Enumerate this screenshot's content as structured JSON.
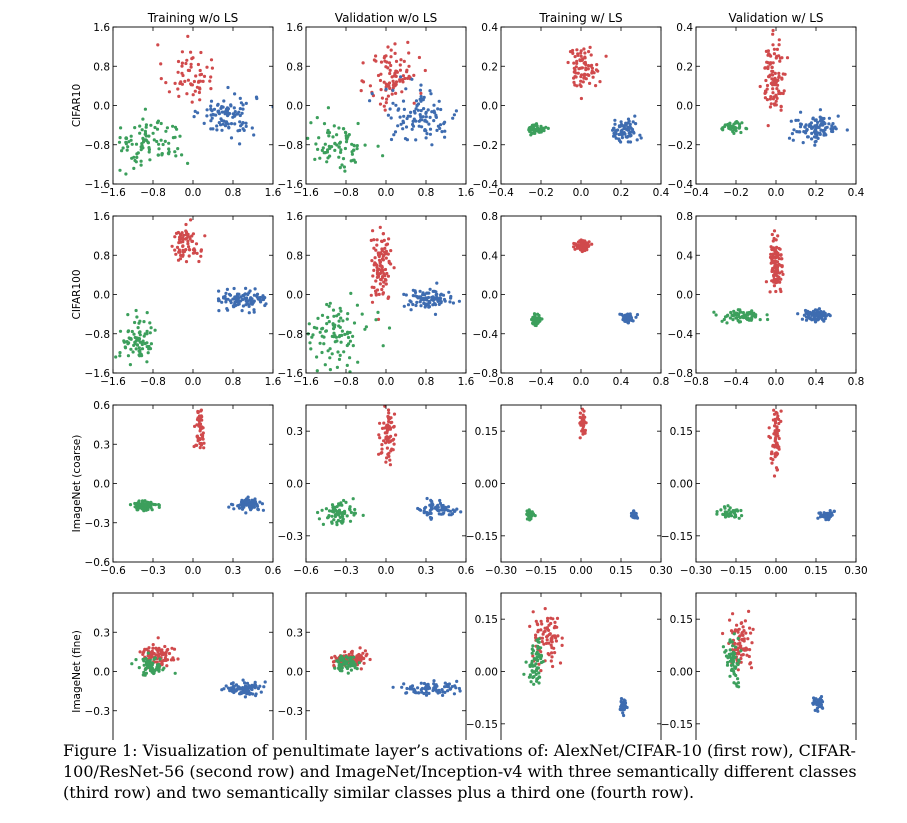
{
  "caption": "Figure 1: Visualization of penultimate layer’s activations of: AlexNet/CIFAR-10 (first row), CIFAR-100/ResNet-56 (second row) and ImageNet/Inception-v4 with three semantically different classes (third row) and two semantically similar classes plus a third one (fourth row).",
  "colors": {
    "red": "#d04a4c",
    "green": "#3c9f5c",
    "blue": "#3e6cb0"
  },
  "chart_data": {
    "type": "scatter",
    "column_titles": [
      "Training w/o LS",
      "Validation w/o LS",
      "Training w/ LS",
      "Validation w/ LS"
    ],
    "row_labels": [
      "CIFAR10",
      "CIFAR100",
      "ImageNet (coarse)",
      "ImageNet (fine)"
    ],
    "series_names": [
      "red",
      "green",
      "blue"
    ],
    "panels": [
      {
        "row": 0,
        "col": 0,
        "xlim": [
          -1.6,
          1.6
        ],
        "ylim": [
          -1.6,
          1.6
        ],
        "xticks": [
          "-1.6",
          "-0.8",
          "0.0",
          "0.8",
          "1.6"
        ],
        "yticks": [
          "-1.6",
          "-0.8",
          "0.0",
          "0.8",
          "1.6"
        ],
        "clusters": [
          {
            "series": "red",
            "n": 60,
            "cx": -0.1,
            "cy": 0.65,
            "sx": 0.25,
            "sy": 0.3
          },
          {
            "series": "blue",
            "n": 100,
            "cx": 0.7,
            "cy": -0.2,
            "sx": 0.28,
            "sy": 0.22
          },
          {
            "series": "green",
            "n": 100,
            "cx": -0.9,
            "cy": -0.75,
            "sx": 0.38,
            "sy": 0.25
          }
        ]
      },
      {
        "row": 0,
        "col": 1,
        "xlim": [
          -1.6,
          1.6
        ],
        "ylim": [
          -1.6,
          1.6
        ],
        "xticks": [
          "-1.6",
          "-0.8",
          "0.0",
          "0.8",
          "1.6"
        ],
        "yticks": [
          "-1.6",
          "-0.8",
          "0.0",
          "0.8",
          "1.6"
        ],
        "clusters": [
          {
            "series": "red",
            "n": 90,
            "cx": 0.15,
            "cy": 0.6,
            "sx": 0.25,
            "sy": 0.35
          },
          {
            "series": "blue",
            "n": 110,
            "cx": 0.7,
            "cy": -0.2,
            "sx": 0.38,
            "sy": 0.28
          },
          {
            "series": "green",
            "n": 80,
            "cx": -0.95,
            "cy": -0.8,
            "sx": 0.3,
            "sy": 0.25
          }
        ]
      },
      {
        "row": 0,
        "col": 2,
        "xlim": [
          -0.4,
          0.4
        ],
        "ylim": [
          -0.4,
          0.4
        ],
        "xticks": [
          "-0.4",
          "-0.2",
          "0.0",
          "0.2",
          "0.4"
        ],
        "yticks": [
          "-0.4",
          "-0.2",
          "0.0",
          "0.2",
          "0.4"
        ],
        "clusters": [
          {
            "series": "red",
            "n": 80,
            "cx": 0.01,
            "cy": 0.2,
            "sx": 0.04,
            "sy": 0.05
          },
          {
            "series": "blue",
            "n": 70,
            "cx": 0.22,
            "cy": -0.13,
            "sx": 0.035,
            "sy": 0.03
          },
          {
            "series": "green",
            "n": 60,
            "cx": -0.22,
            "cy": -0.12,
            "sx": 0.02,
            "sy": 0.012
          }
        ]
      },
      {
        "row": 0,
        "col": 3,
        "xlim": [
          -0.4,
          0.4
        ],
        "ylim": [
          -0.4,
          0.4
        ],
        "xticks": [
          "-0.4",
          "-0.2",
          "0.0",
          "0.2",
          "0.4"
        ],
        "yticks": [
          "-0.4",
          "-0.2",
          "0.0",
          "0.2",
          "0.4"
        ],
        "clusters": [
          {
            "series": "red",
            "n": 100,
            "cx": -0.01,
            "cy": 0.15,
            "sx": 0.03,
            "sy": 0.09
          },
          {
            "series": "blue",
            "n": 100,
            "cx": 0.2,
            "cy": -0.12,
            "sx": 0.06,
            "sy": 0.035
          },
          {
            "series": "green",
            "n": 40,
            "cx": -0.22,
            "cy": -0.11,
            "sx": 0.025,
            "sy": 0.012
          }
        ]
      },
      {
        "row": 1,
        "col": 0,
        "xlim": [
          -1.6,
          1.6
        ],
        "ylim": [
          -1.6,
          1.6
        ],
        "xticks": [
          "-1.6",
          "-0.8",
          "0.0",
          "0.8",
          "1.6"
        ],
        "yticks": [
          "-1.6",
          "-0.8",
          "0.0",
          "0.8",
          "1.6"
        ],
        "clusters": [
          {
            "series": "red",
            "n": 70,
            "cx": -0.15,
            "cy": 1.0,
            "sx": 0.15,
            "sy": 0.22
          },
          {
            "series": "blue",
            "n": 100,
            "cx": 1.0,
            "cy": -0.1,
            "sx": 0.22,
            "sy": 0.1
          },
          {
            "series": "green",
            "n": 80,
            "cx": -1.1,
            "cy": -0.9,
            "sx": 0.18,
            "sy": 0.22
          }
        ]
      },
      {
        "row": 1,
        "col": 1,
        "xlim": [
          -1.6,
          1.6
        ],
        "ylim": [
          -1.6,
          1.6
        ],
        "xticks": [
          "-1.6",
          "-0.8",
          "0.0",
          "0.8",
          "1.6"
        ],
        "yticks": [
          "-1.6",
          "-0.8",
          "0.0",
          "0.8",
          "1.6"
        ],
        "clusters": [
          {
            "series": "red",
            "n": 110,
            "cx": -0.1,
            "cy": 0.55,
            "sx": 0.1,
            "sy": 0.35
          },
          {
            "series": "blue",
            "n": 90,
            "cx": 0.85,
            "cy": -0.1,
            "sx": 0.25,
            "sy": 0.1
          },
          {
            "series": "green",
            "n": 100,
            "cx": -1.0,
            "cy": -0.8,
            "sx": 0.35,
            "sy": 0.3
          }
        ]
      },
      {
        "row": 1,
        "col": 2,
        "xlim": [
          -0.8,
          0.8
        ],
        "ylim": [
          -0.8,
          0.8
        ],
        "xticks": [
          "-0.8",
          "-0.4",
          "0.0",
          "0.4",
          "0.8"
        ],
        "yticks": [
          "-0.8",
          "-0.4",
          "0.0",
          "0.4",
          "0.8"
        ],
        "clusters": [
          {
            "series": "red",
            "n": 70,
            "cx": 0.02,
            "cy": 0.5,
            "sx": 0.035,
            "sy": 0.03
          },
          {
            "series": "blue",
            "n": 60,
            "cx": 0.47,
            "cy": -0.24,
            "sx": 0.03,
            "sy": 0.025
          },
          {
            "series": "green",
            "n": 70,
            "cx": -0.45,
            "cy": -0.26,
            "sx": 0.025,
            "sy": 0.025
          }
        ]
      },
      {
        "row": 1,
        "col": 3,
        "xlim": [
          -0.8,
          0.8
        ],
        "ylim": [
          -0.8,
          0.8
        ],
        "xticks": [
          "-0.8",
          "-0.4",
          "0.0",
          "0.4",
          "0.8"
        ],
        "yticks": [
          "-0.8",
          "-0.4",
          "0.0",
          "0.4",
          "0.8"
        ],
        "clusters": [
          {
            "series": "red",
            "n": 110,
            "cx": 0.0,
            "cy": 0.3,
            "sx": 0.03,
            "sy": 0.17
          },
          {
            "series": "blue",
            "n": 80,
            "cx": 0.4,
            "cy": -0.22,
            "sx": 0.08,
            "sy": 0.035
          },
          {
            "series": "green",
            "n": 70,
            "cx": -0.35,
            "cy": -0.22,
            "sx": 0.1,
            "sy": 0.03
          }
        ]
      },
      {
        "row": 2,
        "col": 0,
        "xlim": [
          -0.6,
          0.6
        ],
        "ylim": [
          -0.6,
          0.6
        ],
        "xticks": [
          "-0.6",
          "-0.3",
          "0.0",
          "0.3",
          "0.6"
        ],
        "yticks": [
          "-0.6",
          "-0.3",
          "0.0",
          "0.3",
          "0.6"
        ],
        "clusters": [
          {
            "series": "red",
            "n": 50,
            "cx": 0.05,
            "cy": 0.4,
            "sx": 0.02,
            "sy": 0.09
          },
          {
            "series": "blue",
            "n": 70,
            "cx": 0.42,
            "cy": -0.16,
            "sx": 0.05,
            "sy": 0.02
          },
          {
            "series": "green",
            "n": 70,
            "cx": -0.37,
            "cy": -0.17,
            "sx": 0.05,
            "sy": 0.02
          }
        ]
      },
      {
        "row": 2,
        "col": 1,
        "xlim": [
          -0.6,
          0.6
        ],
        "ylim": [
          -0.45,
          0.45
        ],
        "xticks": [
          "-0.6",
          "-0.3",
          "0.0",
          "0.3",
          "0.6"
        ],
        "yticks": [
          "-0.3",
          "0.0",
          "0.3"
        ],
        "clusters": [
          {
            "series": "red",
            "n": 70,
            "cx": 0.02,
            "cy": 0.27,
            "sx": 0.03,
            "sy": 0.08
          },
          {
            "series": "blue",
            "n": 70,
            "cx": 0.4,
            "cy": -0.15,
            "sx": 0.07,
            "sy": 0.025
          },
          {
            "series": "green",
            "n": 70,
            "cx": -0.36,
            "cy": -0.17,
            "sx": 0.06,
            "sy": 0.03
          }
        ]
      },
      {
        "row": 2,
        "col": 2,
        "xlim": [
          -0.3,
          0.3
        ],
        "ylim": [
          -0.225,
          0.225
        ],
        "xticks": [
          "-0.30",
          "-0.15",
          "0.00",
          "0.15",
          "0.30"
        ],
        "yticks": [
          "-0.15",
          "0.00",
          "0.15"
        ],
        "clusters": [
          {
            "series": "red",
            "n": 40,
            "cx": 0.005,
            "cy": 0.175,
            "sx": 0.006,
            "sy": 0.018
          },
          {
            "series": "blue",
            "n": 40,
            "cx": 0.2,
            "cy": -0.09,
            "sx": 0.005,
            "sy": 0.006
          },
          {
            "series": "green",
            "n": 40,
            "cx": -0.19,
            "cy": -0.09,
            "sx": 0.007,
            "sy": 0.006
          }
        ]
      },
      {
        "row": 2,
        "col": 3,
        "xlim": [
          -0.3,
          0.3
        ],
        "ylim": [
          -0.225,
          0.225
        ],
        "xticks": [
          "-0.30",
          "-0.15",
          "0.00",
          "0.15",
          "0.30"
        ],
        "yticks": [
          "-0.15",
          "0.00",
          "0.15"
        ],
        "clusters": [
          {
            "series": "red",
            "n": 70,
            "cx": 0.0,
            "cy": 0.13,
            "sx": 0.008,
            "sy": 0.05
          },
          {
            "series": "blue",
            "n": 40,
            "cx": 0.19,
            "cy": -0.09,
            "sx": 0.015,
            "sy": 0.006
          },
          {
            "series": "green",
            "n": 40,
            "cx": -0.18,
            "cy": -0.085,
            "sx": 0.02,
            "sy": 0.01
          }
        ]
      },
      {
        "row": 3,
        "col": 0,
        "xlim": [
          -0.6,
          0.6
        ],
        "ylim": [
          -0.6,
          0.6
        ],
        "xticks": [
          "-0.6",
          "-0.3",
          "0.0",
          "0.3",
          "0.6"
        ],
        "yticks": [
          "-0.3",
          "0.0",
          "0.3"
        ],
        "clusters": [
          {
            "series": "red",
            "n": 90,
            "cx": -0.27,
            "cy": 0.12,
            "sx": 0.06,
            "sy": 0.05
          },
          {
            "series": "blue",
            "n": 90,
            "cx": 0.38,
            "cy": -0.13,
            "sx": 0.07,
            "sy": 0.025
          },
          {
            "series": "green",
            "n": 60,
            "cx": -0.32,
            "cy": 0.04,
            "sx": 0.05,
            "sy": 0.04
          }
        ]
      },
      {
        "row": 3,
        "col": 1,
        "xlim": [
          -0.6,
          0.6
        ],
        "ylim": [
          -0.6,
          0.6
        ],
        "xticks": [
          "-0.6",
          "-0.3",
          "0.0",
          "0.3",
          "0.6"
        ],
        "yticks": [
          "-0.3",
          "0.0",
          "0.3"
        ],
        "clusters": [
          {
            "series": "red",
            "n": 100,
            "cx": -0.27,
            "cy": 0.09,
            "sx": 0.06,
            "sy": 0.03
          },
          {
            "series": "blue",
            "n": 80,
            "cx": 0.33,
            "cy": -0.13,
            "sx": 0.1,
            "sy": 0.025
          },
          {
            "series": "green",
            "n": 60,
            "cx": -0.3,
            "cy": 0.06,
            "sx": 0.05,
            "sy": 0.03
          }
        ]
      },
      {
        "row": 3,
        "col": 2,
        "xlim": [
          -0.3,
          0.3
        ],
        "ylim": [
          -0.225,
          0.225
        ],
        "xticks": [
          "-0.30",
          "-0.15",
          "0.00",
          "0.15",
          "0.30"
        ],
        "yticks": [
          "-0.15",
          "0.00",
          "0.15"
        ],
        "clusters": [
          {
            "series": "red",
            "n": 80,
            "cx": -0.13,
            "cy": 0.1,
            "sx": 0.025,
            "sy": 0.035
          },
          {
            "series": "blue",
            "n": 40,
            "cx": 0.16,
            "cy": -0.1,
            "sx": 0.006,
            "sy": 0.01
          },
          {
            "series": "green",
            "n": 60,
            "cx": -0.17,
            "cy": 0.02,
            "sx": 0.015,
            "sy": 0.03
          }
        ]
      },
      {
        "row": 3,
        "col": 3,
        "xlim": [
          -0.3,
          0.3
        ],
        "ylim": [
          -0.225,
          0.225
        ],
        "xticks": [
          "-0.30",
          "-0.15",
          "0.00",
          "0.15",
          "0.30"
        ],
        "yticks": [
          "-0.15",
          "0.00",
          "0.15"
        ],
        "clusters": [
          {
            "series": "red",
            "n": 80,
            "cx": -0.13,
            "cy": 0.08,
            "sx": 0.025,
            "sy": 0.035
          },
          {
            "series": "blue",
            "n": 40,
            "cx": 0.16,
            "cy": -0.09,
            "sx": 0.01,
            "sy": 0.01
          },
          {
            "series": "green",
            "n": 60,
            "cx": -0.16,
            "cy": 0.03,
            "sx": 0.015,
            "sy": 0.03
          }
        ]
      }
    ]
  }
}
